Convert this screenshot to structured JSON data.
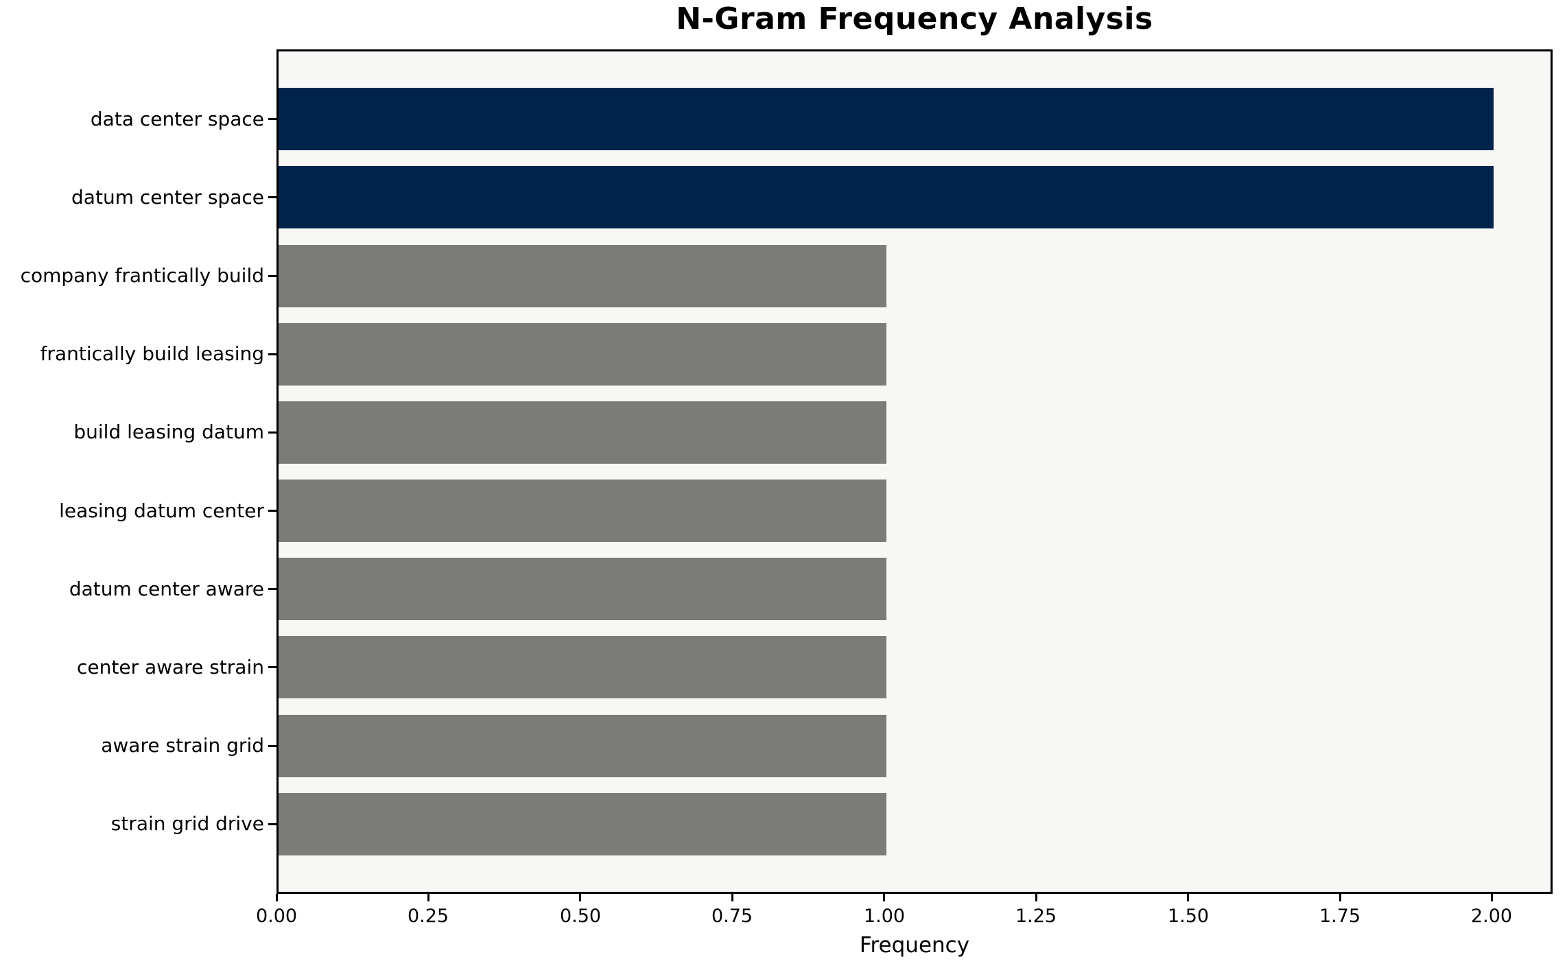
{
  "chart_data": {
    "type": "bar",
    "orientation": "horizontal",
    "title": "N-Gram Frequency Analysis",
    "xlabel": "Frequency",
    "ylabel": "",
    "categories": [
      "data center space",
      "datum center space",
      "company frantically build",
      "frantically build leasing",
      "build leasing datum",
      "leasing datum center",
      "datum center aware",
      "center aware strain",
      "aware strain grid",
      "strain grid drive"
    ],
    "values": [
      2,
      2,
      1,
      1,
      1,
      1,
      1,
      1,
      1,
      1
    ],
    "bar_colors": [
      "#02234c",
      "#02234c",
      "#7b7b78",
      "#7b7b78",
      "#7b7b78",
      "#7b7b78",
      "#7b7b78",
      "#7b7b78",
      "#7b7b78",
      "#7b7b78"
    ],
    "xlim": [
      0,
      2.1
    ],
    "ylim": [
      -0.89,
      9.89
    ],
    "xticks": {
      "values": [
        0,
        0.25,
        0.5,
        0.75,
        1.0,
        1.25,
        1.5,
        1.75,
        2.0
      ],
      "labels": [
        "0.00",
        "0.25",
        "0.50",
        "0.75",
        "1.00",
        "1.25",
        "1.50",
        "1.75",
        "2.00"
      ]
    },
    "bar_height_fraction": 0.8,
    "grid": false,
    "legend": false,
    "colors": {
      "highlight_bar": "#02234c",
      "default_bar": "#7b7b78",
      "plot_background": "#f7f7f6",
      "figure_background": "#ffffff",
      "spine": "#000000",
      "text": "#000000"
    }
  }
}
